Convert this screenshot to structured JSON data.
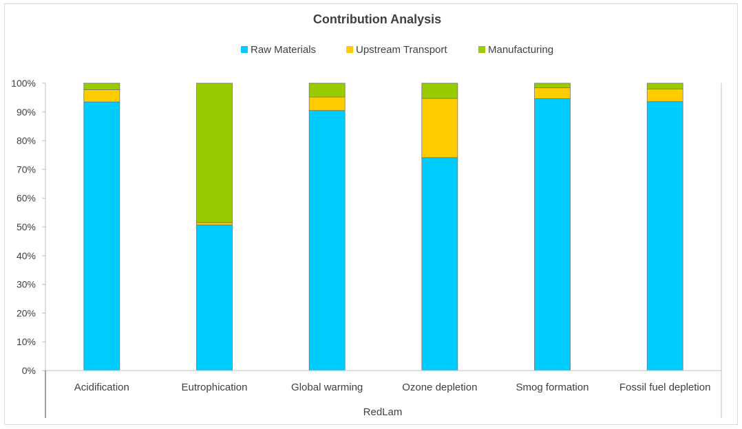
{
  "chart_data": {
    "type": "bar",
    "stacked": true,
    "percent_stacked": true,
    "title": "Contribution Analysis",
    "group_label": "RedLam",
    "categories": [
      "Acidification",
      "Eutrophication",
      "Global warming",
      "Ozone depletion",
      "Smog formation",
      "Fossil fuel depletion"
    ],
    "series": [
      {
        "name": "Raw Materials",
        "color": "#00ccff",
        "values": [
          93.5,
          50.7,
          90.5,
          74.1,
          94.6,
          93.6
        ]
      },
      {
        "name": "Upstream Transport",
        "color": "#ffcc00",
        "values": [
          4.2,
          0.8,
          4.7,
          20.6,
          3.8,
          4.4
        ]
      },
      {
        "name": "Manufacturing",
        "color": "#99cc00",
        "values": [
          2.3,
          48.5,
          4.8,
          5.3,
          1.6,
          2.0
        ]
      }
    ],
    "ylim": [
      0,
      100
    ],
    "yticks": [
      "0%",
      "10%",
      "20%",
      "30%",
      "40%",
      "50%",
      "60%",
      "70%",
      "80%",
      "90%",
      "100%"
    ],
    "legend_position": "top",
    "grid": false
  }
}
